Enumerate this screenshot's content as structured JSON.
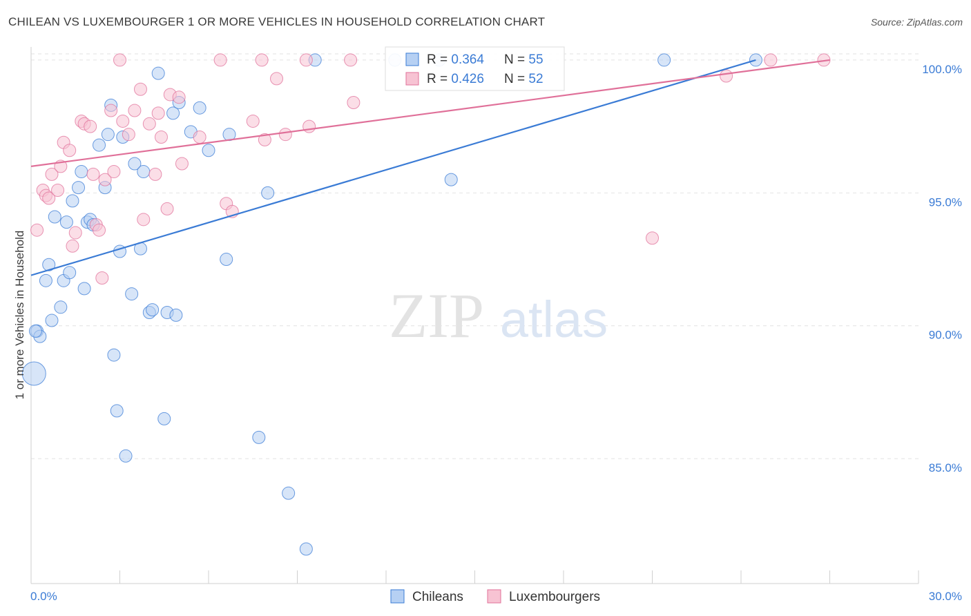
{
  "title": "CHILEAN VS LUXEMBOURGER 1 OR MORE VEHICLES IN HOUSEHOLD CORRELATION CHART",
  "source": "Source: ZipAtlas.com",
  "watermark": {
    "zip": "ZIP",
    "atlas": "atlas"
  },
  "chart_data": {
    "type": "scatter",
    "title": "CHILEAN VS LUXEMBOURGER 1 OR MORE VEHICLES IN HOUSEHOLD CORRELATION CHART",
    "xlabel": "",
    "ylabel": "1 or more Vehicles in Household",
    "xlim": [
      0,
      30
    ],
    "ylim": [
      80.3,
      100.7
    ],
    "x_tick_labels": [
      "0.0%",
      "30.0%"
    ],
    "y_ticks": [
      85,
      90,
      95,
      100
    ],
    "y_tick_labels": [
      "85.0%",
      "90.0%",
      "95.0%",
      "100.0%"
    ],
    "grid": "horizontal dashed",
    "legend_placement": "top-center",
    "series": [
      {
        "name": "Chileans",
        "color": "#3a7bd5",
        "fill": "#b6d0f3",
        "stats": {
          "r_label": "R = ",
          "r": "0.364",
          "n_label": "N = ",
          "n": "55"
        },
        "trend": {
          "x": [
            0,
            24.5
          ],
          "y": [
            91.9,
            100.0
          ]
        },
        "points": [
          [
            0.1,
            88.2
          ],
          [
            0.2,
            89.8
          ],
          [
            0.3,
            89.6
          ],
          [
            0.5,
            91.7
          ],
          [
            0.6,
            92.3
          ],
          [
            0.7,
            90.2
          ],
          [
            0.8,
            94.1
          ],
          [
            1.0,
            90.7
          ],
          [
            1.1,
            91.7
          ],
          [
            1.2,
            93.9
          ],
          [
            1.3,
            92.0
          ],
          [
            1.4,
            94.7
          ],
          [
            1.6,
            95.2
          ],
          [
            1.7,
            95.8
          ],
          [
            1.8,
            91.4
          ],
          [
            1.9,
            93.9
          ],
          [
            2.0,
            94.0
          ],
          [
            2.1,
            93.8
          ],
          [
            2.3,
            96.8
          ],
          [
            2.5,
            95.2
          ],
          [
            2.6,
            97.2
          ],
          [
            2.7,
            98.3
          ],
          [
            2.8,
            88.9
          ],
          [
            2.9,
            86.8
          ],
          [
            3.0,
            92.8
          ],
          [
            3.1,
            97.1
          ],
          [
            3.2,
            85.1
          ],
          [
            3.4,
            91.2
          ],
          [
            3.5,
            96.1
          ],
          [
            3.7,
            92.9
          ],
          [
            3.8,
            95.8
          ],
          [
            4.0,
            90.5
          ],
          [
            4.1,
            90.6
          ],
          [
            4.3,
            99.5
          ],
          [
            4.5,
            86.5
          ],
          [
            4.6,
            90.5
          ],
          [
            4.8,
            98.0
          ],
          [
            4.9,
            90.4
          ],
          [
            5.0,
            98.4
          ],
          [
            5.4,
            97.3
          ],
          [
            5.7,
            98.2
          ],
          [
            6.0,
            96.6
          ],
          [
            6.6,
            92.5
          ],
          [
            6.7,
            97.2
          ],
          [
            7.7,
            85.8
          ],
          [
            8.0,
            95.0
          ],
          [
            8.7,
            83.7
          ],
          [
            9.3,
            81.6
          ],
          [
            9.6,
            100.0
          ],
          [
            12.3,
            100.0
          ],
          [
            13.8,
            100.0
          ],
          [
            14.2,
            95.5
          ],
          [
            21.4,
            100.0
          ],
          [
            24.5,
            100.0
          ],
          [
            0.15,
            89.8
          ]
        ],
        "sizes": {
          "large_point_index": 0
        }
      },
      {
        "name": "Luxembourgers",
        "color": "#e07099",
        "fill": "#f7c3d3",
        "stats": {
          "r_label": "R = ",
          "r": "0.426",
          "n_label": "N = ",
          "n": "52"
        },
        "trend": {
          "x": [
            0,
            27.0
          ],
          "y": [
            96.0,
            100.0
          ]
        },
        "points": [
          [
            0.2,
            93.6
          ],
          [
            0.4,
            95.1
          ],
          [
            0.5,
            94.9
          ],
          [
            0.6,
            94.8
          ],
          [
            0.7,
            95.7
          ],
          [
            0.9,
            95.1
          ],
          [
            1.0,
            96.0
          ],
          [
            1.1,
            96.9
          ],
          [
            1.3,
            96.6
          ],
          [
            1.4,
            93.0
          ],
          [
            1.5,
            93.5
          ],
          [
            1.7,
            97.7
          ],
          [
            1.8,
            97.6
          ],
          [
            2.0,
            97.5
          ],
          [
            2.1,
            95.7
          ],
          [
            2.2,
            93.8
          ],
          [
            2.3,
            93.6
          ],
          [
            2.4,
            91.8
          ],
          [
            2.5,
            95.5
          ],
          [
            2.7,
            98.1
          ],
          [
            2.8,
            95.8
          ],
          [
            3.0,
            100.0
          ],
          [
            3.1,
            97.7
          ],
          [
            3.3,
            97.2
          ],
          [
            3.5,
            98.1
          ],
          [
            3.7,
            98.9
          ],
          [
            3.8,
            94.0
          ],
          [
            4.0,
            97.6
          ],
          [
            4.2,
            95.7
          ],
          [
            4.3,
            98.0
          ],
          [
            4.4,
            97.1
          ],
          [
            4.6,
            94.4
          ],
          [
            4.7,
            98.7
          ],
          [
            5.0,
            98.6
          ],
          [
            5.1,
            96.1
          ],
          [
            5.7,
            97.1
          ],
          [
            6.4,
            100.0
          ],
          [
            6.6,
            94.6
          ],
          [
            6.8,
            94.3
          ],
          [
            7.5,
            97.7
          ],
          [
            7.8,
            100.0
          ],
          [
            7.9,
            97.0
          ],
          [
            8.3,
            99.3
          ],
          [
            8.6,
            97.2
          ],
          [
            9.3,
            100.0
          ],
          [
            9.4,
            97.5
          ],
          [
            10.8,
            100.0
          ],
          [
            10.9,
            98.4
          ],
          [
            21.0,
            93.3
          ],
          [
            23.5,
            99.4
          ],
          [
            25.0,
            100.0
          ],
          [
            26.8,
            100.0
          ]
        ]
      }
    ]
  }
}
